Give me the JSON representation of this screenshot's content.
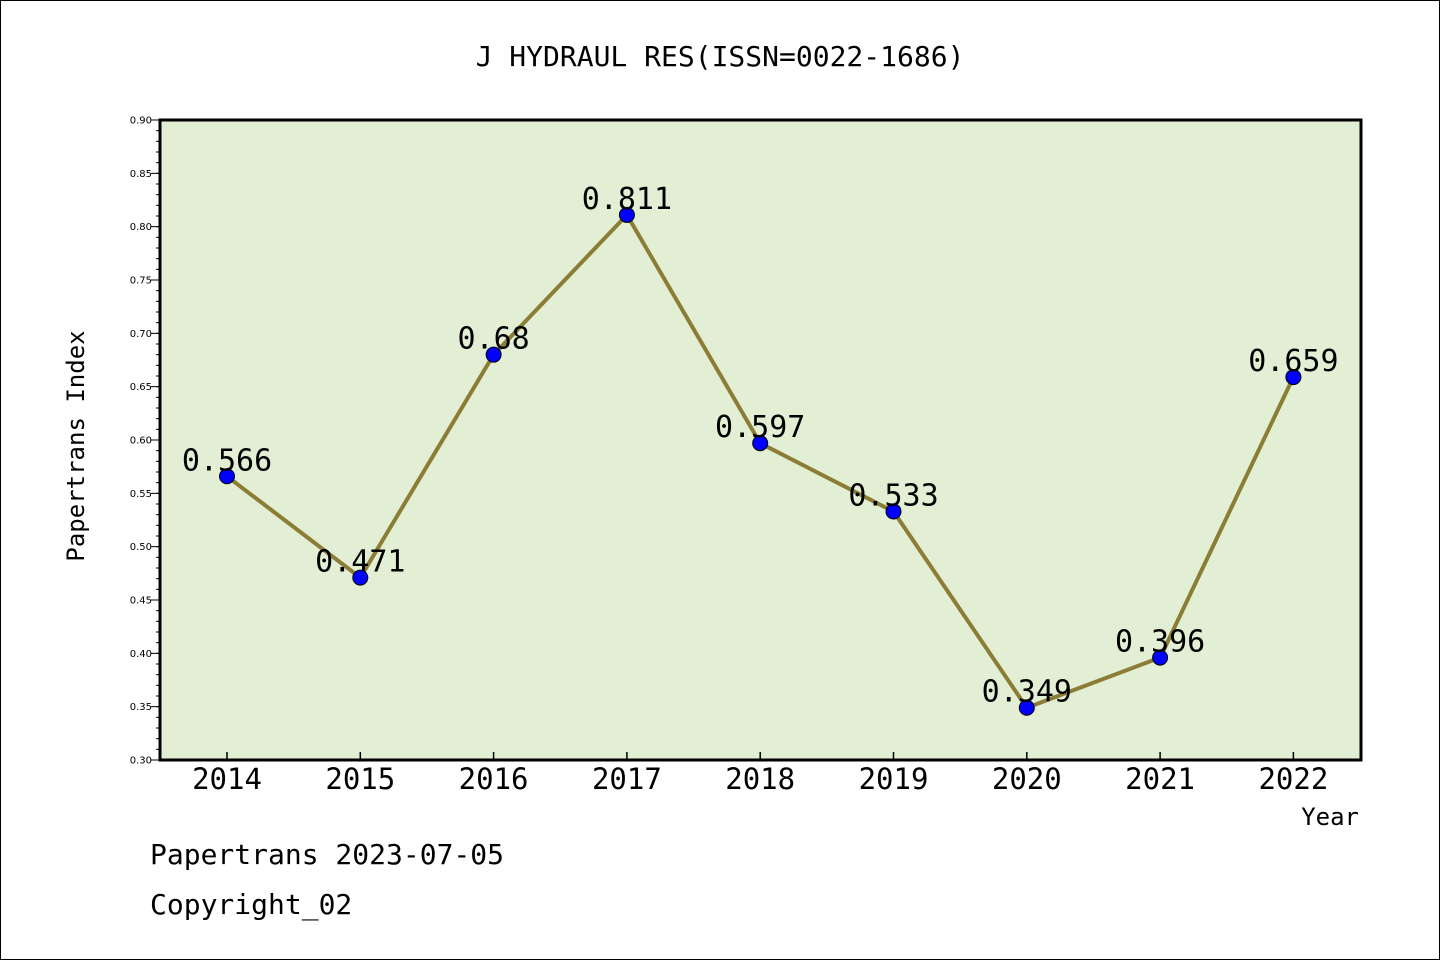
{
  "chart_data": {
    "type": "line",
    "title": "J HYDRAUL RES(ISSN=0022-1686)",
    "xlabel": "Year",
    "ylabel": "Papertrans Index",
    "categories": [
      "2014",
      "2015",
      "2016",
      "2017",
      "2018",
      "2019",
      "2020",
      "2021",
      "2022"
    ],
    "values": [
      0.566,
      0.471,
      0.68,
      0.811,
      0.597,
      0.533,
      0.349,
      0.396,
      0.659
    ],
    "data_labels": [
      "0.566",
      "0.471",
      "0.68",
      "0.811",
      "0.597",
      "0.533",
      "0.349",
      "0.396",
      "0.659"
    ],
    "ylim": [
      0.3,
      0.9
    ],
    "yticks": [
      "0.30",
      "0.35",
      "0.40",
      "0.45",
      "0.50",
      "0.55",
      "0.60",
      "0.65",
      "0.70",
      "0.75",
      "0.80",
      "0.85",
      "0.90"
    ],
    "grid": false,
    "colors": {
      "plot_background": "#e2efd4",
      "line": "#8b7d35",
      "marker": "#0000ff"
    }
  },
  "footer": {
    "source": "Papertrans 2023-07-05",
    "copyright": "Copyright_02"
  }
}
